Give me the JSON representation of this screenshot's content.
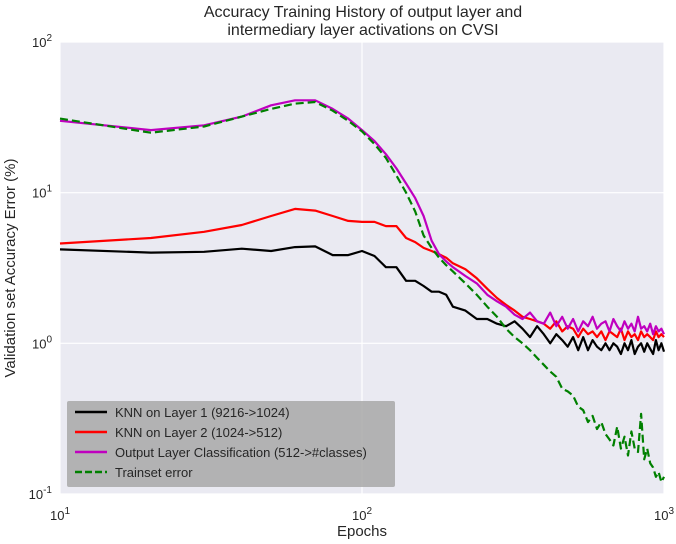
{
  "chart_data": {
    "type": "line",
    "title": [
      "Accuracy Training History of output layer and",
      "intermediary layer activations on CVSI"
    ],
    "xlabel": "Epochs",
    "ylabel": "Validation set Accuracy Error (%)",
    "x_scale": "log",
    "y_scale": "log",
    "xlim": [
      10,
      1000
    ],
    "ylim": [
      0.1,
      100
    ],
    "x_ticks": [
      {
        "value": 10,
        "base": "10",
        "exp": "1"
      },
      {
        "value": 100,
        "base": "10",
        "exp": "2"
      },
      {
        "value": 1000,
        "base": "10",
        "exp": "3"
      }
    ],
    "y_ticks": [
      {
        "value": 0.1,
        "base": "10",
        "exp": "-1"
      },
      {
        "value": 1,
        "base": "10",
        "exp": "0"
      },
      {
        "value": 10,
        "base": "10",
        "exp": "1"
      },
      {
        "value": 100,
        "base": "10",
        "exp": "2"
      }
    ],
    "grid": true,
    "legend_position": "lower-left",
    "background_color": "#eaeaf2",
    "series": [
      {
        "name": "KNN on Layer 1 (9216->1024)",
        "color": "#000000",
        "dash": "solid",
        "x": [
          10,
          20,
          30,
          40,
          50,
          60,
          70,
          80,
          90,
          100,
          110,
          120,
          130,
          140,
          150,
          160,
          170,
          180,
          190,
          200,
          220,
          240,
          260,
          280,
          300,
          320,
          340,
          360,
          380,
          400,
          420,
          440,
          460,
          480,
          500,
          520,
          540,
          560,
          580,
          600,
          620,
          640,
          660,
          680,
          700,
          720,
          740,
          760,
          780,
          800,
          820,
          840,
          860,
          880,
          900,
          920,
          940,
          960,
          980,
          1000
        ],
        "y": [
          4.2,
          4.0,
          4.05,
          4.25,
          4.1,
          4.35,
          4.4,
          3.85,
          3.85,
          4.1,
          3.8,
          3.2,
          3.2,
          2.6,
          2.6,
          2.4,
          2.2,
          2.2,
          2.1,
          1.75,
          1.65,
          1.45,
          1.45,
          1.35,
          1.3,
          1.4,
          1.25,
          1.1,
          1.3,
          1.15,
          1.0,
          1.15,
          1.05,
          0.95,
          1.1,
          0.9,
          1.1,
          0.9,
          1.05,
          0.95,
          0.9,
          1.0,
          0.9,
          1.0,
          0.95,
          0.85,
          1.0,
          0.9,
          1.05,
          0.85,
          0.95,
          1.0,
          0.88,
          1.0,
          0.92,
          0.85,
          1.05,
          0.9,
          1.0,
          0.88
        ]
      },
      {
        "name": "KNN on Layer 2 (1024->512)",
        "color": "#ff0000",
        "dash": "solid",
        "x": [
          10,
          20,
          30,
          40,
          50,
          60,
          70,
          80,
          90,
          100,
          110,
          120,
          130,
          140,
          150,
          160,
          170,
          180,
          190,
          200,
          220,
          240,
          260,
          280,
          300,
          320,
          340,
          360,
          380,
          400,
          420,
          440,
          460,
          480,
          500,
          520,
          540,
          560,
          580,
          600,
          620,
          640,
          660,
          680,
          700,
          720,
          740,
          760,
          780,
          800,
          820,
          840,
          860,
          880,
          900,
          920,
          940,
          960,
          980,
          1000
        ],
        "y": [
          4.6,
          5.0,
          5.5,
          6.1,
          7.0,
          7.8,
          7.6,
          7.0,
          6.5,
          6.4,
          6.4,
          6.0,
          6.0,
          5.0,
          4.7,
          4.3,
          4.1,
          3.9,
          3.7,
          3.4,
          3.1,
          2.7,
          2.3,
          2.0,
          1.8,
          1.65,
          1.5,
          1.45,
          1.4,
          1.35,
          1.25,
          1.4,
          1.2,
          1.3,
          1.25,
          1.1,
          1.25,
          1.15,
          1.2,
          1.1,
          1.2,
          1.05,
          1.2,
          1.15,
          1.1,
          1.25,
          1.05,
          1.2,
          1.1,
          1.15,
          1.05,
          1.2,
          1.1,
          1.15,
          1.1,
          1.05,
          1.2,
          1.1,
          1.15,
          1.1
        ]
      },
      {
        "name": "Output Layer Classification (512->#classes)",
        "color": "#bf00bf",
        "dash": "solid",
        "x": [
          10,
          20,
          30,
          40,
          50,
          60,
          70,
          80,
          90,
          100,
          110,
          120,
          130,
          140,
          150,
          160,
          170,
          180,
          190,
          200,
          220,
          240,
          260,
          280,
          300,
          320,
          340,
          360,
          380,
          400,
          420,
          440,
          460,
          480,
          500,
          520,
          540,
          560,
          580,
          600,
          620,
          640,
          660,
          680,
          700,
          720,
          740,
          760,
          780,
          800,
          820,
          840,
          860,
          880,
          900,
          920,
          940,
          960,
          980,
          1000
        ],
        "y": [
          30,
          26,
          28,
          32,
          38,
          41,
          41,
          36,
          31,
          26,
          22,
          18,
          14.5,
          11.5,
          9.2,
          7.0,
          4.8,
          3.9,
          3.5,
          3.2,
          2.8,
          2.5,
          2.1,
          1.9,
          1.75,
          1.55,
          1.45,
          1.6,
          1.4,
          1.35,
          1.6,
          1.3,
          1.5,
          1.25,
          1.45,
          1.2,
          1.4,
          1.3,
          1.5,
          1.25,
          1.35,
          1.4,
          1.2,
          1.45,
          1.3,
          1.2,
          1.4,
          1.25,
          1.35,
          1.2,
          1.5,
          1.25,
          1.3,
          1.2,
          1.35,
          1.15,
          1.3,
          1.2,
          1.25,
          1.15
        ]
      },
      {
        "name": "Trainset error",
        "color": "#008000",
        "dash": "dashed",
        "x": [
          10,
          20,
          30,
          40,
          50,
          60,
          70,
          80,
          90,
          100,
          110,
          120,
          130,
          140,
          150,
          160,
          170,
          180,
          190,
          200,
          220,
          240,
          260,
          280,
          300,
          320,
          340,
          360,
          380,
          400,
          420,
          440,
          460,
          480,
          500,
          520,
          540,
          560,
          580,
          600,
          620,
          640,
          660,
          680,
          700,
          720,
          740,
          760,
          780,
          800,
          820,
          840,
          860,
          880,
          900,
          920,
          940,
          960,
          980,
          1000
        ],
        "y": [
          31,
          25,
          27.5,
          32,
          36,
          39,
          40,
          35,
          30,
          25.5,
          21,
          17,
          13,
          10,
          7.5,
          5.2,
          4.3,
          3.7,
          3.3,
          3.0,
          2.5,
          2.1,
          1.75,
          1.5,
          1.25,
          1.1,
          1.0,
          0.9,
          0.8,
          0.72,
          0.65,
          0.6,
          0.5,
          0.48,
          0.45,
          0.38,
          0.36,
          0.3,
          0.33,
          0.27,
          0.3,
          0.25,
          0.23,
          0.21,
          0.28,
          0.2,
          0.24,
          0.18,
          0.26,
          0.2,
          0.19,
          0.34,
          0.17,
          0.2,
          0.16,
          0.15,
          0.13,
          0.14,
          0.12,
          0.13
        ]
      }
    ]
  }
}
